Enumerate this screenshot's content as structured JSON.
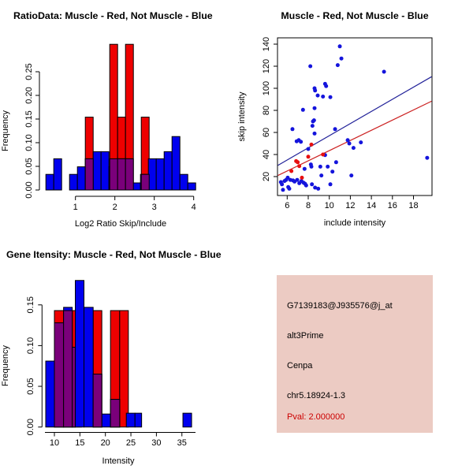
{
  "colors": {
    "hist_blue": "#0000EE",
    "hist_red": "#EE0000",
    "overlap_purple": "#7A007A",
    "point_blue": "#1414DC",
    "point_red": "#E81010",
    "line_blue": "#222299",
    "line_red": "#CC2222",
    "axis_black": "#000000",
    "info_background": "#ECCBC3",
    "pval_red": "#CC0000"
  },
  "chart_data": [
    {
      "type": "bar",
      "subtype": "overlaid-histogram",
      "title": "RatioData: Muscle - Red, Not Muscle - Blue",
      "xlabel": "Log2 Ratio Skip/Include",
      "ylabel": "Frequency",
      "xticks": [
        "1",
        "2",
        "3",
        "4"
      ],
      "yticks": [
        "0.00",
        "0.05",
        "0.10",
        "0.15",
        "0.20",
        "0.25"
      ],
      "xlim": [
        0.2,
        4.1
      ],
      "ylim": [
        0,
        0.31
      ],
      "grid": false,
      "red_bars": [
        [
          1.25,
          1.45,
          0.154
        ],
        [
          1.87,
          2.07,
          0.308
        ],
        [
          2.07,
          2.27,
          0.154
        ],
        [
          2.27,
          2.47,
          0.308
        ],
        [
          2.67,
          2.87,
          0.154
        ]
      ],
      "blue_bars": [
        [
          0.25,
          0.45,
          0.033
        ],
        [
          0.45,
          0.65,
          0.066
        ],
        [
          0.85,
          1.05,
          0.033
        ],
        [
          1.05,
          1.25,
          0.049
        ],
        [
          1.25,
          1.45,
          0.066
        ],
        [
          1.45,
          1.65,
          0.081
        ],
        [
          1.65,
          1.85,
          0.081
        ],
        [
          1.85,
          2.05,
          0.049
        ],
        [
          2.05,
          2.25,
          0.066
        ],
        [
          2.25,
          2.45,
          0.066
        ],
        [
          2.45,
          2.65,
          0.015
        ],
        [
          2.65,
          2.85,
          0.033
        ],
        [
          2.85,
          3.05,
          0.066
        ],
        [
          3.05,
          3.25,
          0.066
        ],
        [
          3.25,
          3.45,
          0.081
        ],
        [
          3.45,
          3.65,
          0.113
        ],
        [
          3.65,
          3.85,
          0.033
        ],
        [
          3.85,
          4.05,
          0.015
        ]
      ],
      "overlap_bars": [
        [
          1.25,
          1.45,
          0.066
        ],
        [
          1.87,
          2.07,
          0.066
        ],
        [
          2.07,
          2.27,
          0.066
        ],
        [
          2.27,
          2.47,
          0.066
        ],
        [
          2.67,
          2.87,
          0.033
        ]
      ]
    },
    {
      "type": "scatter",
      "title": "Muscle - Red, Not Muscle - Blue",
      "xlabel": "include intensity",
      "ylabel": "skip intensity",
      "xticks": [
        "6",
        "8",
        "10",
        "12",
        "14",
        "16",
        "18"
      ],
      "yticks": [
        "20",
        "40",
        "60",
        "80",
        "100",
        "120",
        "140"
      ],
      "xlim": [
        5.0,
        19.9
      ],
      "ylim": [
        2.5,
        146
      ],
      "grid": false,
      "blue_points": [
        [
          5.4,
          15
        ],
        [
          5.5,
          13
        ],
        [
          5.6,
          8
        ],
        [
          5.75,
          16
        ],
        [
          5.9,
          17
        ],
        [
          6.05,
          19
        ],
        [
          6.1,
          10.5
        ],
        [
          6.2,
          9
        ],
        [
          6.3,
          17
        ],
        [
          6.5,
          63
        ],
        [
          6.55,
          16.5
        ],
        [
          6.7,
          15.5
        ],
        [
          6.9,
          52
        ],
        [
          6.95,
          17
        ],
        [
          7.1,
          53
        ],
        [
          7.15,
          14
        ],
        [
          7.3,
          51.5
        ],
        [
          7.35,
          16
        ],
        [
          7.5,
          80.5
        ],
        [
          7.55,
          14.5
        ],
        [
          7.65,
          27
        ],
        [
          7.7,
          13.5
        ],
        [
          7.8,
          12
        ],
        [
          8.0,
          45
        ],
        [
          8.2,
          120
        ],
        [
          8.25,
          31
        ],
        [
          8.3,
          29
        ],
        [
          8.35,
          13
        ],
        [
          8.4,
          66
        ],
        [
          8.45,
          70
        ],
        [
          8.55,
          71
        ],
        [
          8.6,
          82
        ],
        [
          8.6,
          59
        ],
        [
          8.6,
          100
        ],
        [
          8.65,
          98
        ],
        [
          8.65,
          10
        ],
        [
          8.9,
          93.5
        ],
        [
          8.95,
          9
        ],
        [
          9.15,
          29
        ],
        [
          9.25,
          21
        ],
        [
          9.4,
          92.5
        ],
        [
          9.6,
          39.5
        ],
        [
          9.6,
          104
        ],
        [
          9.7,
          102
        ],
        [
          9.85,
          29
        ],
        [
          10.1,
          13
        ],
        [
          10.1,
          92
        ],
        [
          10.3,
          24.5
        ],
        [
          10.55,
          63
        ],
        [
          10.65,
          33
        ],
        [
          10.8,
          121
        ],
        [
          11.0,
          138
        ],
        [
          11.15,
          127
        ],
        [
          11.75,
          53
        ],
        [
          11.9,
          50
        ],
        [
          12.1,
          21
        ],
        [
          12.3,
          46
        ],
        [
          13.0,
          51
        ],
        [
          15.2,
          115
        ],
        [
          19.3,
          37
        ]
      ],
      "red_points": [
        [
          6.4,
          25
        ],
        [
          6.85,
          34
        ],
        [
          7.0,
          33
        ],
        [
          7.15,
          29.5
        ],
        [
          7.4,
          19
        ],
        [
          8.0,
          38
        ],
        [
          8.3,
          49
        ],
        [
          9.4,
          40
        ]
      ],
      "blue_line": [
        5.12,
        30.2,
        19.72,
        110.5
      ],
      "red_line": [
        5.12,
        21.0,
        19.72,
        88.3
      ]
    },
    {
      "type": "bar",
      "subtype": "overlaid-histogram",
      "title": "Gene Itensity: Muscle - Red, Not Muscle - Blue",
      "xlabel": "Intensity",
      "ylabel": "Frequency",
      "xticks": [
        "10",
        "15",
        "20",
        "25",
        "30",
        "35"
      ],
      "yticks": [
        "0.00",
        "0.05",
        "0.10",
        "0.15"
      ],
      "xlim": [
        8,
        38
      ],
      "ylim": [
        0,
        0.19
      ],
      "grid": false,
      "red_bars": [
        [
          10,
          11.8,
          0.143
        ],
        [
          11.8,
          13.5,
          0.143
        ],
        [
          13.5,
          15.3,
          0.143
        ],
        [
          17.6,
          19.3,
          0.143
        ],
        [
          21,
          22.8,
          0.143
        ],
        [
          22.8,
          24.5,
          0.143
        ]
      ],
      "blue_bars": [
        [
          8.3,
          10,
          0.081
        ],
        [
          10,
          11.8,
          0.128
        ],
        [
          11.8,
          13.5,
          0.147
        ],
        [
          13.5,
          14.1,
          0.098
        ],
        [
          14.1,
          15.8,
          0.18
        ],
        [
          15.8,
          17.6,
          0.147
        ],
        [
          17.6,
          19.3,
          0.065
        ],
        [
          19.3,
          21,
          0.016
        ],
        [
          21,
          22.8,
          0.034
        ],
        [
          24.1,
          25.8,
          0.017
        ],
        [
          25.8,
          27.1,
          0.017
        ],
        [
          35.2,
          36.9,
          0.017
        ]
      ],
      "overlap_bars": [
        [
          10,
          11.8,
          0.128
        ],
        [
          11.8,
          13.5,
          0.143
        ],
        [
          13.5,
          14.1,
          0.098
        ],
        [
          17.6,
          19.3,
          0.065
        ],
        [
          21,
          22.8,
          0.034
        ]
      ]
    }
  ],
  "info_panel": {
    "probeset_id": "G7139183@J935576@j_at",
    "splice_type": "alt3Prime",
    "gene_symbol": "Cenpa",
    "location": "chr5.18924-1.3",
    "pval_text": "Pval: 2.000000"
  }
}
